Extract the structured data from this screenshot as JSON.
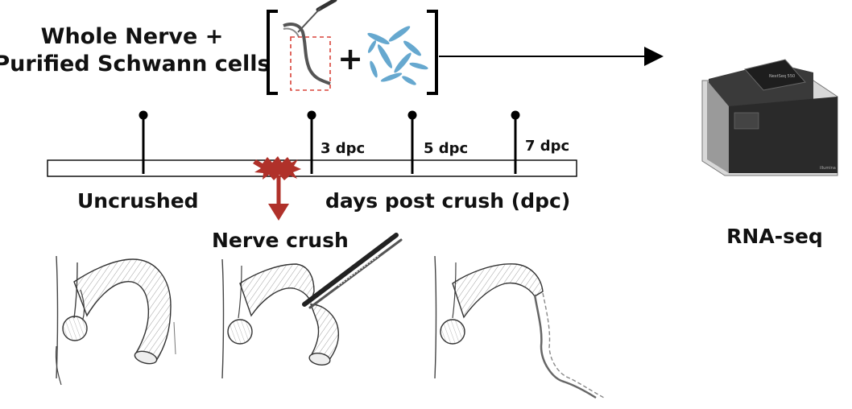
{
  "sample_title": {
    "line1": "Whole Nerve +",
    "line2": "Purified Schwann cells"
  },
  "plus_sign": "+",
  "timeline": {
    "markers": [
      {
        "label": ""
      },
      {
        "label": "3 dpc"
      },
      {
        "label": "5 dpc"
      },
      {
        "label": "7 dpc"
      }
    ],
    "left_label": "Uncrushed",
    "right_label": "days post crush (dpc)",
    "crush_label": "Nerve crush"
  },
  "output_label": "RNA-seq",
  "instrument_brand": "NextSeq 550",
  "instrument_maker": "illumina",
  "colors": {
    "crush_red": "#b0312a",
    "box_red": "#d9443a",
    "cell_blue": "#3b8fc2",
    "instrument_dark": "#2a2a2a"
  },
  "illustrations": [
    {
      "name": "uncrushed-nerve"
    },
    {
      "name": "crushed-nerve-with-forceps"
    },
    {
      "name": "degenerated-nerve"
    }
  ]
}
